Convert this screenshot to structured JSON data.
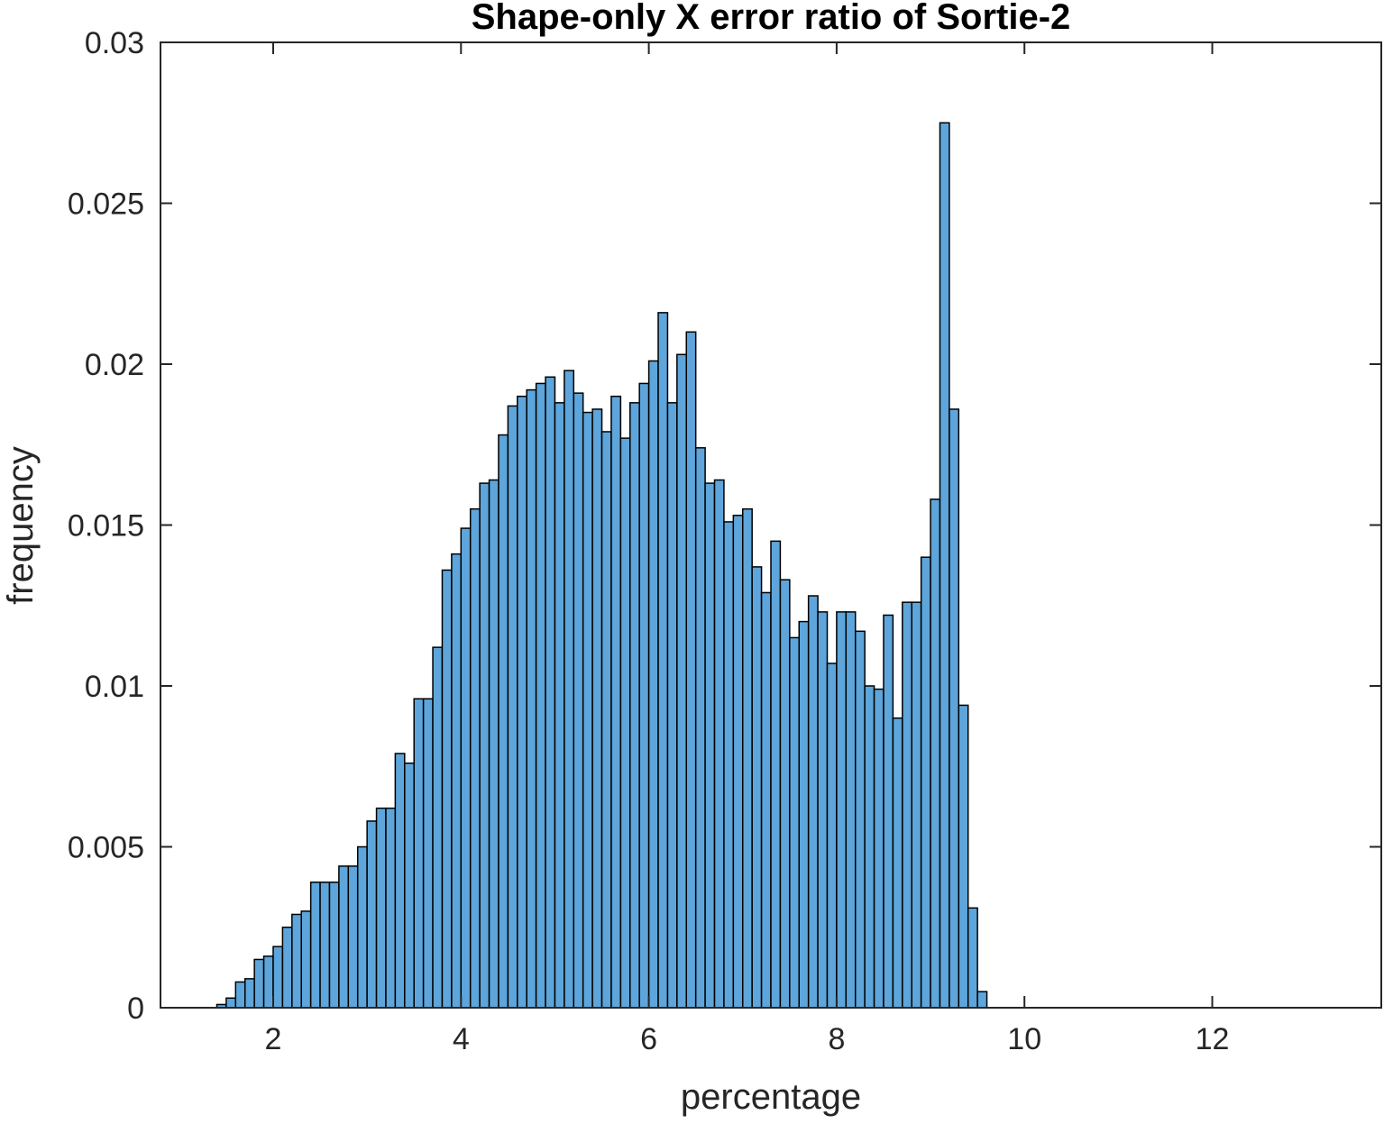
{
  "chart_data": {
    "type": "bar",
    "title": "Shape-only X error ratio of Sortie-2",
    "xlabel": "percentage",
    "ylabel": "frequency",
    "xlim": [
      0.8,
      13.8
    ],
    "ylim": [
      0,
      0.03
    ],
    "x_ticks": [
      "2",
      "4",
      "6",
      "8",
      "10",
      "12"
    ],
    "x_tick_values": [
      2,
      4,
      6,
      8,
      10,
      12
    ],
    "y_ticks": [
      "0",
      "0.005",
      "0.01",
      "0.015",
      "0.02",
      "0.025",
      "0.03"
    ],
    "y_tick_values": [
      0,
      0.005,
      0.01,
      0.015,
      0.02,
      0.025,
      0.03
    ],
    "grid": false,
    "box": true,
    "bar_color": "#5DA5DA",
    "edge_color": "#000000",
    "bin_start": 1.4,
    "bin_width": 0.1,
    "values": [
      0.0001,
      0.0003,
      0.0008,
      0.0009,
      0.0015,
      0.0016,
      0.0019,
      0.0025,
      0.0029,
      0.003,
      0.0039,
      0.0039,
      0.0039,
      0.0044,
      0.0044,
      0.005,
      0.0058,
      0.0062,
      0.0062,
      0.0079,
      0.0076,
      0.0096,
      0.0096,
      0.0112,
      0.0136,
      0.0141,
      0.0149,
      0.0155,
      0.0163,
      0.0164,
      0.0178,
      0.0187,
      0.019,
      0.0192,
      0.0194,
      0.0196,
      0.0188,
      0.0198,
      0.0191,
      0.0185,
      0.0186,
      0.0179,
      0.019,
      0.0177,
      0.0188,
      0.0194,
      0.0201,
      0.0216,
      0.0188,
      0.0203,
      0.021,
      0.0174,
      0.0163,
      0.0164,
      0.0151,
      0.0153,
      0.0155,
      0.0137,
      0.0129,
      0.0145,
      0.0133,
      0.0115,
      0.012,
      0.0128,
      0.0123,
      0.0107,
      0.0123,
      0.0123,
      0.0117,
      0.01,
      0.0099,
      0.0122,
      0.009,
      0.0126,
      0.0126,
      0.014,
      0.0158,
      0.0275,
      0.0186,
      0.0094,
      0.0031,
      0.0005,
      0,
      0,
      0,
      0,
      0,
      0,
      0,
      0,
      0,
      0,
      0,
      0,
      0,
      0,
      0,
      0,
      0
    ]
  }
}
